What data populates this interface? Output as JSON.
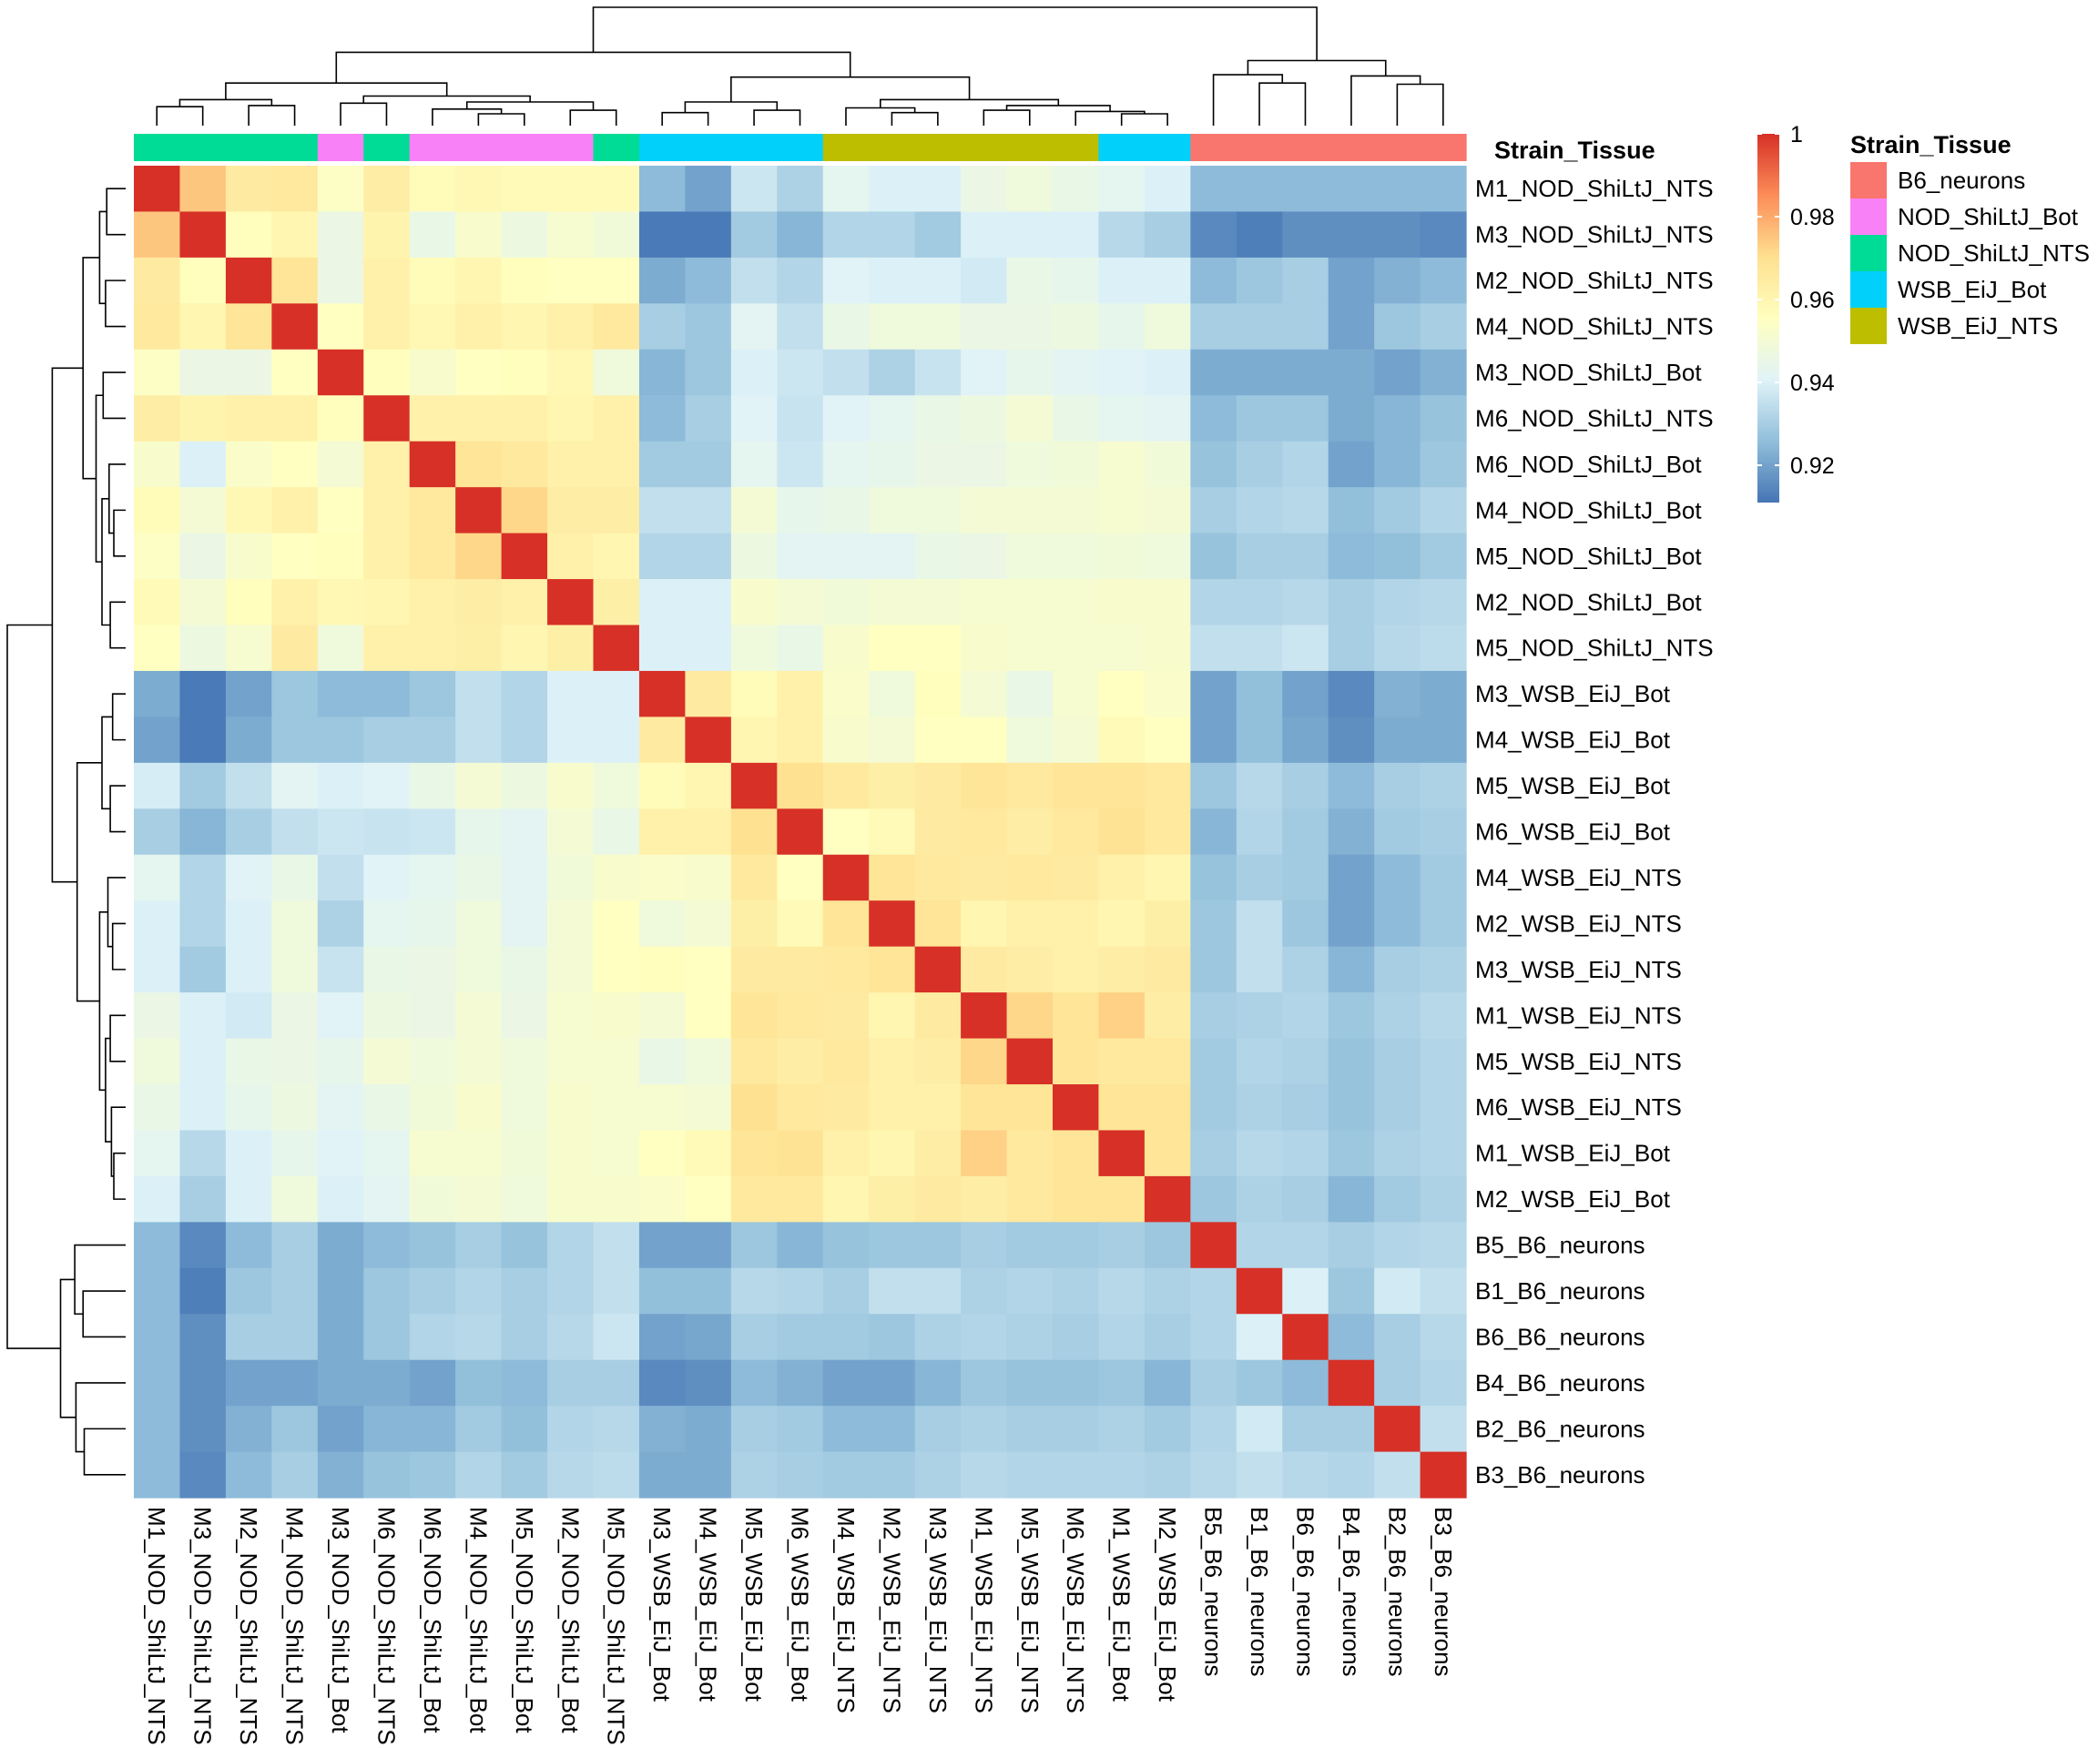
{
  "chart_data": {
    "type": "heatmap",
    "title": "",
    "rows": [
      "M1_NOD_ShiLtJ_NTS",
      "M3_NOD_ShiLtJ_NTS",
      "M2_NOD_ShiLtJ_NTS",
      "M4_NOD_ShiLtJ_NTS",
      "M3_NOD_ShiLtJ_Bot",
      "M6_NOD_ShiLtJ_NTS",
      "M6_NOD_ShiLtJ_Bot",
      "M4_NOD_ShiLtJ_Bot",
      "M5_NOD_ShiLtJ_Bot",
      "M2_NOD_ShiLtJ_Bot",
      "M5_NOD_ShiLtJ_NTS",
      "M3_WSB_EiJ_Bot",
      "M4_WSB_EiJ_Bot",
      "M5_WSB_EiJ_Bot",
      "M6_WSB_EiJ_Bot",
      "M4_WSB_EiJ_NTS",
      "M2_WSB_EiJ_NTS",
      "M3_WSB_EiJ_NTS",
      "M1_WSB_EiJ_NTS",
      "M5_WSB_EiJ_NTS",
      "M6_WSB_EiJ_NTS",
      "M1_WSB_EiJ_Bot",
      "M2_WSB_EiJ_Bot",
      "B5_B6_neurons",
      "B1_B6_neurons",
      "B6_B6_neurons",
      "B4_B6_neurons",
      "B2_B6_neurons",
      "B3_B6_neurons"
    ],
    "columns": [
      "M1_NOD_ShiLtJ_NTS",
      "M3_NOD_ShiLtJ_NTS",
      "M2_NOD_ShiLtJ_NTS",
      "M4_NOD_ShiLtJ_NTS",
      "M3_NOD_ShiLtJ_Bot",
      "M6_NOD_ShiLtJ_NTS",
      "M6_NOD_ShiLtJ_Bot",
      "M4_NOD_ShiLtJ_Bot",
      "M5_NOD_ShiLtJ_Bot",
      "M2_NOD_ShiLtJ_Bot",
      "M5_NOD_ShiLtJ_NTS",
      "M3_WSB_EiJ_Bot",
      "M4_WSB_EiJ_Bot",
      "M5_WSB_EiJ_Bot",
      "M6_WSB_EiJ_Bot",
      "M4_WSB_EiJ_NTS",
      "M2_WSB_EiJ_NTS",
      "M3_WSB_EiJ_NTS",
      "M1_WSB_EiJ_NTS",
      "M5_WSB_EiJ_NTS",
      "M6_WSB_EiJ_NTS",
      "M1_WSB_EiJ_Bot",
      "M2_WSB_EiJ_Bot",
      "B5_B6_neurons",
      "B1_B6_neurons",
      "B6_B6_neurons",
      "B4_B6_neurons",
      "B2_B6_neurons",
      "B3_B6_neurons"
    ],
    "annotation": {
      "name": "Strain_Tissue",
      "values": [
        "NOD_ShiLtJ_NTS",
        "NOD_ShiLtJ_NTS",
        "NOD_ShiLtJ_NTS",
        "NOD_ShiLtJ_NTS",
        "NOD_ShiLtJ_Bot",
        "NOD_ShiLtJ_NTS",
        "NOD_ShiLtJ_Bot",
        "NOD_ShiLtJ_Bot",
        "NOD_ShiLtJ_Bot",
        "NOD_ShiLtJ_Bot",
        "NOD_ShiLtJ_NTS",
        "WSB_EiJ_Bot",
        "WSB_EiJ_Bot",
        "WSB_EiJ_Bot",
        "WSB_EiJ_Bot",
        "WSB_EiJ_NTS",
        "WSB_EiJ_NTS",
        "WSB_EiJ_NTS",
        "WSB_EiJ_NTS",
        "WSB_EiJ_NTS",
        "WSB_EiJ_NTS",
        "WSB_EiJ_Bot",
        "WSB_EiJ_Bot",
        "B6_neurons",
        "B6_neurons",
        "B6_neurons",
        "B6_neurons",
        "B6_neurons",
        "B6_neurons"
      ],
      "legend": [
        {
          "label": "B6_neurons",
          "color": "#F8766D"
        },
        {
          "label": "NOD_ShiLtJ_Bot",
          "color": "#F981F7"
        },
        {
          "label": "NOD_ShiLtJ_NTS",
          "color": "#00DC96"
        },
        {
          "label": "WSB_EiJ_Bot",
          "color": "#00D0FA"
        },
        {
          "label": "WSB_EiJ_NTS",
          "color": "#BDBE00"
        }
      ]
    },
    "colorbar": {
      "range": [
        0.911,
        1.0
      ],
      "ticks": [
        1,
        0.98,
        0.96,
        0.94,
        0.92
      ],
      "tick_labels": [
        "1",
        "0.98",
        "0.96",
        "0.94",
        "0.92"
      ],
      "colors": [
        "#4575B4",
        "#91BFDB",
        "#E0F3F8",
        "#FFFFBF",
        "#FEE090",
        "#FC8D59",
        "#D73027"
      ]
    },
    "values": [
      [
        1.0,
        0.975,
        0.965,
        0.966,
        0.954,
        0.964,
        0.957,
        0.959,
        0.958,
        0.958,
        0.958,
        0.925,
        0.92,
        0.937,
        0.931,
        0.943,
        0.94,
        0.94,
        0.946,
        0.948,
        0.945,
        0.943,
        0.94,
        0.925,
        0.925,
        0.925,
        0.925,
        0.925,
        0.925
      ],
      [
        0.975,
        1.0,
        0.956,
        0.96,
        0.946,
        0.961,
        0.945,
        0.952,
        0.947,
        0.951,
        0.949,
        0.912,
        0.912,
        0.929,
        0.924,
        0.932,
        0.932,
        0.929,
        0.94,
        0.94,
        0.94,
        0.933,
        0.93,
        0.915,
        0.913,
        0.916,
        0.916,
        0.916,
        0.915
      ],
      [
        0.965,
        0.956,
        1.0,
        0.968,
        0.946,
        0.962,
        0.957,
        0.96,
        0.956,
        0.955,
        0.955,
        0.922,
        0.925,
        0.935,
        0.932,
        0.941,
        0.94,
        0.94,
        0.938,
        0.945,
        0.944,
        0.94,
        0.94,
        0.925,
        0.928,
        0.93,
        0.92,
        0.923,
        0.925
      ],
      [
        0.966,
        0.96,
        0.968,
        1.0,
        0.955,
        0.962,
        0.959,
        0.962,
        0.96,
        0.962,
        0.966,
        0.93,
        0.928,
        0.942,
        0.935,
        0.945,
        0.948,
        0.948,
        0.946,
        0.946,
        0.947,
        0.944,
        0.948,
        0.93,
        0.93,
        0.93,
        0.92,
        0.928,
        0.93
      ],
      [
        0.954,
        0.946,
        0.946,
        0.955,
        1.0,
        0.956,
        0.952,
        0.955,
        0.956,
        0.959,
        0.948,
        0.924,
        0.928,
        0.94,
        0.937,
        0.935,
        0.931,
        0.936,
        0.941,
        0.944,
        0.942,
        0.941,
        0.94,
        0.922,
        0.922,
        0.922,
        0.922,
        0.92,
        0.923
      ],
      [
        0.964,
        0.961,
        0.962,
        0.962,
        0.956,
        1.0,
        0.962,
        0.962,
        0.962,
        0.96,
        0.962,
        0.925,
        0.93,
        0.941,
        0.936,
        0.941,
        0.943,
        0.945,
        0.947,
        0.95,
        0.945,
        0.943,
        0.942,
        0.925,
        0.928,
        0.928,
        0.922,
        0.924,
        0.927
      ],
      [
        0.952,
        0.94,
        0.953,
        0.955,
        0.95,
        0.962,
        1.0,
        0.968,
        0.966,
        0.962,
        0.962,
        0.929,
        0.929,
        0.943,
        0.937,
        0.943,
        0.944,
        0.946,
        0.946,
        0.948,
        0.949,
        0.951,
        0.949,
        0.927,
        0.93,
        0.932,
        0.92,
        0.924,
        0.928
      ],
      [
        0.957,
        0.95,
        0.959,
        0.962,
        0.955,
        0.962,
        0.966,
        1.0,
        0.972,
        0.964,
        0.964,
        0.935,
        0.935,
        0.95,
        0.944,
        0.945,
        0.948,
        0.948,
        0.95,
        0.95,
        0.95,
        0.951,
        0.95,
        0.93,
        0.932,
        0.933,
        0.926,
        0.929,
        0.932
      ],
      [
        0.954,
        0.946,
        0.952,
        0.955,
        0.956,
        0.962,
        0.966,
        0.972,
        1.0,
        0.962,
        0.96,
        0.932,
        0.932,
        0.947,
        0.942,
        0.942,
        0.942,
        0.945,
        0.946,
        0.948,
        0.948,
        0.949,
        0.948,
        0.927,
        0.93,
        0.93,
        0.925,
        0.926,
        0.929
      ],
      [
        0.958,
        0.95,
        0.956,
        0.962,
        0.959,
        0.96,
        0.962,
        0.964,
        0.962,
        1.0,
        0.963,
        0.94,
        0.94,
        0.952,
        0.95,
        0.949,
        0.95,
        0.95,
        0.951,
        0.951,
        0.951,
        0.952,
        0.952,
        0.932,
        0.932,
        0.933,
        0.93,
        0.932,
        0.933
      ],
      [
        0.955,
        0.947,
        0.951,
        0.965,
        0.948,
        0.962,
        0.962,
        0.963,
        0.96,
        0.963,
        1.0,
        0.94,
        0.94,
        0.948,
        0.945,
        0.952,
        0.955,
        0.955,
        0.952,
        0.951,
        0.951,
        0.951,
        0.952,
        0.935,
        0.935,
        0.937,
        0.93,
        0.933,
        0.934
      ],
      [
        0.922,
        0.912,
        0.92,
        0.928,
        0.925,
        0.925,
        0.928,
        0.935,
        0.932,
        0.94,
        0.94,
        1.0,
        0.965,
        0.957,
        0.962,
        0.953,
        0.948,
        0.956,
        0.95,
        0.945,
        0.951,
        0.955,
        0.953,
        0.92,
        0.926,
        0.92,
        0.915,
        0.923,
        0.922
      ],
      [
        0.92,
        0.912,
        0.922,
        0.928,
        0.928,
        0.93,
        0.93,
        0.935,
        0.932,
        0.94,
        0.94,
        0.965,
        1.0,
        0.96,
        0.962,
        0.952,
        0.95,
        0.955,
        0.955,
        0.948,
        0.95,
        0.958,
        0.955,
        0.92,
        0.926,
        0.921,
        0.916,
        0.922,
        0.922
      ],
      [
        0.939,
        0.929,
        0.935,
        0.942,
        0.94,
        0.941,
        0.945,
        0.95,
        0.947,
        0.952,
        0.948,
        0.957,
        0.96,
        1.0,
        0.97,
        0.966,
        0.963,
        0.965,
        0.968,
        0.966,
        0.968,
        0.968,
        0.966,
        0.928,
        0.933,
        0.93,
        0.925,
        0.93,
        0.931
      ],
      [
        0.93,
        0.924,
        0.93,
        0.935,
        0.937,
        0.936,
        0.937,
        0.944,
        0.942,
        0.95,
        0.945,
        0.962,
        0.962,
        0.97,
        1.0,
        0.955,
        0.958,
        0.965,
        0.966,
        0.964,
        0.966,
        0.969,
        0.966,
        0.924,
        0.932,
        0.929,
        0.923,
        0.929,
        0.93
      ],
      [
        0.943,
        0.932,
        0.941,
        0.945,
        0.935,
        0.941,
        0.943,
        0.945,
        0.942,
        0.949,
        0.952,
        0.953,
        0.952,
        0.966,
        0.955,
        1.0,
        0.968,
        0.966,
        0.965,
        0.966,
        0.965,
        0.962,
        0.96,
        0.927,
        0.93,
        0.929,
        0.92,
        0.925,
        0.929
      ],
      [
        0.94,
        0.932,
        0.94,
        0.948,
        0.931,
        0.943,
        0.944,
        0.948,
        0.942,
        0.95,
        0.955,
        0.948,
        0.95,
        0.963,
        0.958,
        0.968,
        1.0,
        0.968,
        0.96,
        0.962,
        0.962,
        0.96,
        0.963,
        0.928,
        0.935,
        0.928,
        0.92,
        0.925,
        0.929
      ],
      [
        0.94,
        0.929,
        0.94,
        0.948,
        0.936,
        0.945,
        0.946,
        0.948,
        0.945,
        0.95,
        0.955,
        0.956,
        0.955,
        0.965,
        0.965,
        0.966,
        0.968,
        1.0,
        0.965,
        0.964,
        0.962,
        0.964,
        0.965,
        0.928,
        0.935,
        0.931,
        0.924,
        0.93,
        0.931
      ],
      [
        0.946,
        0.94,
        0.938,
        0.946,
        0.941,
        0.947,
        0.946,
        0.95,
        0.946,
        0.951,
        0.952,
        0.95,
        0.955,
        0.968,
        0.966,
        0.965,
        0.96,
        0.965,
        1.0,
        0.972,
        0.968,
        0.973,
        0.964,
        0.93,
        0.931,
        0.932,
        0.928,
        0.931,
        0.933
      ],
      [
        0.948,
        0.94,
        0.945,
        0.946,
        0.944,
        0.95,
        0.948,
        0.95,
        0.948,
        0.951,
        0.951,
        0.945,
        0.948,
        0.966,
        0.964,
        0.966,
        0.962,
        0.964,
        0.972,
        1.0,
        0.968,
        0.966,
        0.966,
        0.929,
        0.932,
        0.931,
        0.927,
        0.93,
        0.932
      ],
      [
        0.945,
        0.94,
        0.944,
        0.947,
        0.942,
        0.945,
        0.949,
        0.952,
        0.948,
        0.952,
        0.951,
        0.951,
        0.95,
        0.97,
        0.966,
        0.965,
        0.962,
        0.962,
        0.968,
        0.968,
        1.0,
        0.968,
        0.968,
        0.929,
        0.931,
        0.93,
        0.927,
        0.93,
        0.932
      ],
      [
        0.943,
        0.933,
        0.94,
        0.944,
        0.941,
        0.943,
        0.951,
        0.951,
        0.949,
        0.952,
        0.951,
        0.955,
        0.958,
        0.968,
        0.969,
        0.962,
        0.96,
        0.964,
        0.973,
        0.966,
        0.968,
        1.0,
        0.968,
        0.93,
        0.933,
        0.932,
        0.928,
        0.931,
        0.932
      ],
      [
        0.94,
        0.93,
        0.94,
        0.948,
        0.94,
        0.942,
        0.949,
        0.95,
        0.948,
        0.952,
        0.952,
        0.953,
        0.955,
        0.966,
        0.966,
        0.96,
        0.963,
        0.965,
        0.964,
        0.966,
        0.968,
        0.968,
        1.0,
        0.928,
        0.931,
        0.93,
        0.924,
        0.929,
        0.931
      ],
      [
        0.925,
        0.915,
        0.925,
        0.93,
        0.922,
        0.925,
        0.927,
        0.93,
        0.927,
        0.932,
        0.935,
        0.92,
        0.92,
        0.928,
        0.924,
        0.927,
        0.928,
        0.928,
        0.93,
        0.929,
        0.929,
        0.93,
        0.928,
        1.0,
        0.932,
        0.932,
        0.93,
        0.932,
        0.933
      ],
      [
        0.925,
        0.913,
        0.928,
        0.93,
        0.922,
        0.928,
        0.93,
        0.932,
        0.93,
        0.932,
        0.935,
        0.926,
        0.926,
        0.933,
        0.932,
        0.93,
        0.935,
        0.935,
        0.931,
        0.932,
        0.931,
        0.933,
        0.931,
        0.932,
        1.0,
        0.94,
        0.928,
        0.938,
        0.935
      ],
      [
        0.925,
        0.916,
        0.93,
        0.93,
        0.922,
        0.928,
        0.932,
        0.933,
        0.93,
        0.933,
        0.937,
        0.92,
        0.921,
        0.93,
        0.929,
        0.929,
        0.928,
        0.931,
        0.932,
        0.931,
        0.93,
        0.932,
        0.93,
        0.932,
        0.94,
        1.0,
        0.925,
        0.93,
        0.933
      ],
      [
        0.925,
        0.916,
        0.92,
        0.92,
        0.922,
        0.922,
        0.92,
        0.926,
        0.925,
        0.93,
        0.93,
        0.915,
        0.916,
        0.925,
        0.923,
        0.92,
        0.92,
        0.924,
        0.928,
        0.927,
        0.927,
        0.928,
        0.924,
        0.93,
        0.928,
        0.925,
        1.0,
        0.93,
        0.932
      ],
      [
        0.925,
        0.916,
        0.923,
        0.928,
        0.92,
        0.924,
        0.924,
        0.929,
        0.926,
        0.932,
        0.933,
        0.923,
        0.922,
        0.93,
        0.929,
        0.925,
        0.925,
        0.93,
        0.931,
        0.93,
        0.93,
        0.931,
        0.929,
        0.932,
        0.938,
        0.93,
        0.93,
        1.0,
        0.935
      ],
      [
        0.925,
        0.915,
        0.925,
        0.93,
        0.923,
        0.927,
        0.928,
        0.932,
        0.929,
        0.933,
        0.934,
        0.922,
        0.922,
        0.931,
        0.93,
        0.929,
        0.929,
        0.931,
        0.933,
        0.932,
        0.932,
        0.932,
        0.931,
        0.933,
        0.935,
        0.933,
        0.932,
        0.935,
        1.0
      ]
    ]
  }
}
